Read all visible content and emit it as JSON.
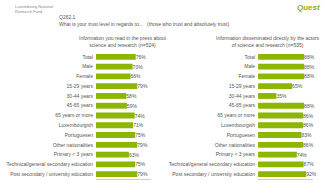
{
  "title": "Q262.1",
  "subtitle": "What is your trust level in regards to...   (those who trust and absolutely trust)",
  "annotations": [
    "Luxembourg National\nResearch Fund",
    "Quest"
  ],
  "chart_data": [
    {
      "type": "bar",
      "orientation": "horizontal",
      "title": "Information you read in the press about\nscience and research (n=524)",
      "categories": [
        "Total",
        "Male",
        "Female",
        "15-29 years",
        "30-44 years",
        "45-65 years",
        "65 years or more",
        "Luxembourgish",
        "Portuguesen",
        "Other nationalities",
        "Primary < 3 years",
        "Technical/general secondary education",
        "Post secondary / university education"
      ],
      "values": [
        76,
        70,
        66,
        79,
        58,
        59,
        74,
        71,
        75,
        79,
        63,
        75,
        79
      ],
      "value_labels": [
        "76%",
        "70%",
        "66%",
        "79%",
        "58%",
        "59%",
        "74%",
        "71%",
        "75%",
        "79%",
        "63%",
        "75%",
        "79%"
      ],
      "data_labels": true,
      "color": "#8db600",
      "xlim": [
        0,
        105
      ],
      "grid": false,
      "tick_labels": "y"
    },
    {
      "type": "bar",
      "orientation": "horizontal",
      "title": "Information disseminated directly by the actors\nof science and research (n=535)",
      "categories": [
        "Total",
        "Male",
        "Female",
        "15-29 years",
        "30-44 years",
        "45-65 years",
        "65 years or more",
        "Luxembourgish",
        "Portuguesen",
        "Other nationalities",
        "Primary < 3 years",
        "Technical/general secondary education",
        "Post secondary / university education"
      ],
      "values": [
        88,
        88,
        88,
        65,
        35,
        88,
        86,
        86,
        83,
        86,
        74,
        87,
        92
      ],
      "value_labels": [
        "88%",
        "88%",
        "88%",
        "65%",
        "35%",
        "88%",
        "86%",
        "86%",
        "83%",
        "86%",
        "74%",
        "87%",
        "92%"
      ],
      "data_labels": true,
      "color": "#8db600",
      "xlim": [
        0,
        105
      ],
      "grid": false,
      "tick_labels": "y"
    }
  ]
}
